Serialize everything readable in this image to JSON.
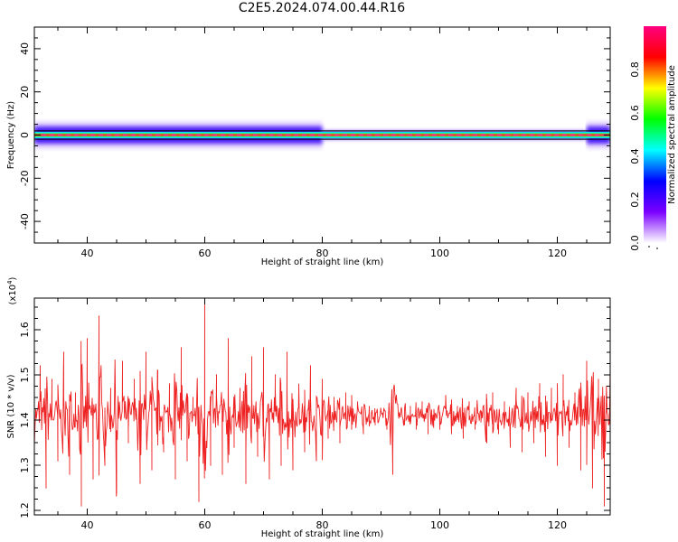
{
  "title": "C2E5.2024.074.00.44.R16",
  "chart_data": [
    {
      "type": "heatmap",
      "xlabel": "Height of straight line (km)",
      "ylabel": "Frequency (Hz)",
      "xlim": [
        31,
        129
      ],
      "ylim": [
        -50,
        50
      ],
      "x_ticks": [
        "40",
        "60",
        "80",
        "100",
        "120"
      ],
      "x_tick_values": [
        40,
        60,
        80,
        100,
        120
      ],
      "y_ticks": [
        "40",
        "20",
        "0",
        "-20",
        "-40"
      ],
      "y_tick_values": [
        40,
        20,
        0,
        -20,
        -40
      ],
      "center_frequency": 0,
      "band_halfwidth_hz": 1.5,
      "spread_segments": [
        {
          "x0": 31,
          "x1": 80,
          "halfwidth_hz": 4
        },
        {
          "x0": 80,
          "x1": 125,
          "halfwidth_hz": 1.5
        },
        {
          "x0": 125,
          "x1": 129,
          "halfwidth_hz": 4
        }
      ],
      "colorbar": {
        "label": "Normalized spectral amplitude",
        "range": [
          0,
          1
        ],
        "ticks": [
          "0.0",
          "0.2",
          "0.4",
          "0.6",
          "0.8"
        ],
        "tick_values": [
          0,
          0.2,
          0.4,
          0.6,
          0.8
        ],
        "colors": [
          "#ffffff",
          "#7b00ff",
          "#0000ff",
          "#00ffff",
          "#00ff00",
          "#ffff00",
          "#ff0000",
          "#ff0080"
        ]
      }
    },
    {
      "type": "line",
      "xlabel": "Height of straight line (km)",
      "ylabel": "SNR (10 * v/v)",
      "y_multiplier": "(x10",
      "y_multiplier_exp": "4",
      "xlim": [
        31,
        129
      ],
      "ylim": [
        1.19,
        1.67
      ],
      "x_ticks": [
        "40",
        "60",
        "80",
        "100",
        "120"
      ],
      "x_tick_values": [
        40,
        60,
        80,
        100,
        120
      ],
      "y_ticks": [
        "1.2",
        "1.3",
        "1.4",
        "1.5",
        "1.6"
      ],
      "y_tick_values": [
        1.2,
        1.3,
        1.4,
        1.5,
        1.6
      ],
      "series_color": "#ee2222",
      "series": [
        {
          "x": [
            31,
            32,
            33,
            34,
            35,
            36,
            37,
            38,
            39,
            40,
            41,
            42,
            43,
            44,
            45,
            46,
            47,
            48,
            49,
            50,
            51,
            52,
            53,
            54,
            55,
            56,
            57,
            58,
            59,
            60,
            61,
            62,
            63,
            64,
            65,
            66,
            67,
            68,
            69,
            70,
            71,
            72,
            73,
            74,
            75,
            76,
            77,
            78,
            79,
            80,
            81,
            82,
            83,
            84,
            85,
            86,
            87,
            88,
            89,
            90,
            91,
            92,
            93,
            94,
            95,
            96,
            97,
            98,
            99,
            100,
            101,
            102,
            103,
            104,
            105,
            106,
            107,
            108,
            109,
            110,
            111,
            112,
            113,
            114,
            115,
            116,
            117,
            118,
            119,
            120,
            121,
            122,
            123,
            124,
            125,
            126,
            127,
            128,
            129
          ],
          "y": [
            1.33,
            1.52,
            1.25,
            1.49,
            1.31,
            1.55,
            1.28,
            1.46,
            1.21,
            1.58,
            1.27,
            1.63,
            1.3,
            1.47,
            1.24,
            1.53,
            1.35,
            1.49,
            1.26,
            1.55,
            1.29,
            1.51,
            1.33,
            1.48,
            1.27,
            1.56,
            1.31,
            1.45,
            1.22,
            1.67,
            1.3,
            1.5,
            1.28,
            1.58,
            1.34,
            1.47,
            1.26,
            1.54,
            1.32,
            1.56,
            1.27,
            1.5,
            1.3,
            1.55,
            1.29,
            1.47,
            1.33,
            1.52,
            1.31,
            1.49,
            1.36,
            1.45,
            1.35,
            1.46,
            1.38,
            1.44,
            1.37,
            1.43,
            1.39,
            1.42,
            1.38,
            1.28,
            1.41,
            1.39,
            1.43,
            1.38,
            1.44,
            1.37,
            1.42,
            1.38,
            1.45,
            1.37,
            1.43,
            1.36,
            1.44,
            1.38,
            1.42,
            1.35,
            1.46,
            1.37,
            1.44,
            1.34,
            1.47,
            1.33,
            1.46,
            1.35,
            1.48,
            1.32,
            1.47,
            1.3,
            1.5,
            1.34,
            1.46,
            1.29,
            1.53,
            1.25,
            1.49,
            1.21,
            1.52
          ]
        }
      ]
    }
  ]
}
